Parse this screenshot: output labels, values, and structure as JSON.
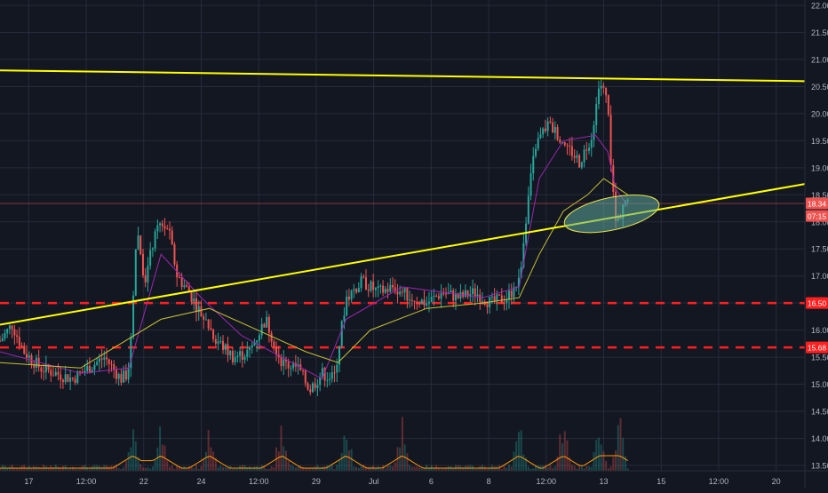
{
  "chart_data": {
    "type": "candlestick",
    "title": "",
    "theme": {
      "background": "#131722",
      "grid": "#262b3b",
      "axis_text": "#b2b5be",
      "up": "#26a69a",
      "down": "#ef5350",
      "trendline": "#ffff00",
      "support": "#ff1f1f",
      "ellipse_fill": "#5fa89a",
      "ellipse_stroke": "#e8e44a",
      "ma_fast": "#9c27b0",
      "ma_slow": "#c9c132",
      "volume_avg": "#ff9800"
    },
    "y_axis": {
      "min": 13.4,
      "max": 22.1,
      "ticks": [
        "13.50",
        "14.00",
        "14.50",
        "15.00",
        "15.50",
        "16.00",
        "16.50",
        "17.00",
        "17.50",
        "18.00",
        "18.50",
        "19.00",
        "19.50",
        "20.00",
        "20.50",
        "21.00",
        "21.50",
        "22.00"
      ]
    },
    "x_axis": {
      "ticks": [
        "17",
        "12:00",
        "22",
        "24",
        "12:00",
        "29",
        "Jul",
        "6",
        "8",
        "12:00",
        "13",
        "15",
        "12:00",
        "20"
      ]
    },
    "price_labels": [
      {
        "id": "last",
        "text": "18.34",
        "value": 18.34,
        "color": "#ef5350"
      },
      {
        "id": "countdown",
        "text": "07:15",
        "value": 18.11,
        "color": "#ef5350"
      },
      {
        "id": "support_upper",
        "text": "16.50",
        "value": 16.5,
        "color": "#ff1f1f"
      },
      {
        "id": "support_lower",
        "text": "15.68",
        "value": 15.68,
        "color": "#ff1f1f"
      }
    ],
    "horizontal_lines": [
      {
        "name": "support-16.50",
        "value": 16.5,
        "style": "dashed"
      },
      {
        "name": "support-15.68",
        "value": 15.68,
        "style": "dashed"
      },
      {
        "name": "last-price-18.34",
        "value": 18.34,
        "style": "solid-thin"
      }
    ],
    "trendlines": [
      {
        "name": "upper-resistance",
        "from": [
          0,
          20.8
        ],
        "to": [
          1,
          20.6
        ]
      },
      {
        "name": "rising-support",
        "from": [
          0,
          16.1
        ],
        "to": [
          1,
          18.7
        ]
      }
    ],
    "price_path": [
      [
        0.0,
        15.8
      ],
      [
        0.015,
        16.1
      ],
      [
        0.03,
        15.6
      ],
      [
        0.05,
        15.3
      ],
      [
        0.07,
        15.2
      ],
      [
        0.09,
        15.1
      ],
      [
        0.11,
        15.3
      ],
      [
        0.13,
        15.5
      ],
      [
        0.15,
        15.1
      ],
      [
        0.16,
        15.2
      ],
      [
        0.17,
        17.9
      ],
      [
        0.18,
        16.9
      ],
      [
        0.19,
        17.6
      ],
      [
        0.2,
        18.0
      ],
      [
        0.21,
        17.8
      ],
      [
        0.22,
        17.0
      ],
      [
        0.235,
        16.7
      ],
      [
        0.25,
        16.3
      ],
      [
        0.27,
        15.8
      ],
      [
        0.29,
        15.5
      ],
      [
        0.31,
        15.6
      ],
      [
        0.33,
        16.2
      ],
      [
        0.35,
        15.4
      ],
      [
        0.37,
        15.3
      ],
      [
        0.385,
        14.9
      ],
      [
        0.4,
        15.2
      ],
      [
        0.415,
        15.1
      ],
      [
        0.43,
        16.6
      ],
      [
        0.45,
        16.9
      ],
      [
        0.47,
        16.7
      ],
      [
        0.49,
        16.8
      ],
      [
        0.51,
        16.6
      ],
      [
        0.53,
        16.5
      ],
      [
        0.55,
        16.7
      ],
      [
        0.57,
        16.6
      ],
      [
        0.59,
        16.7
      ],
      [
        0.61,
        16.5
      ],
      [
        0.63,
        16.6
      ],
      [
        0.645,
        16.9
      ],
      [
        0.655,
        18.3
      ],
      [
        0.665,
        19.4
      ],
      [
        0.68,
        19.8
      ],
      [
        0.695,
        19.6
      ],
      [
        0.71,
        19.3
      ],
      [
        0.72,
        19.1
      ],
      [
        0.735,
        19.6
      ],
      [
        0.745,
        20.6
      ],
      [
        0.755,
        20.2
      ],
      [
        0.76,
        18.8
      ],
      [
        0.765,
        18.0
      ],
      [
        0.77,
        18.1
      ],
      [
        0.775,
        18.4
      ],
      [
        0.78,
        18.3
      ]
    ],
    "ma_fast_path": [
      [
        0.0,
        15.6
      ],
      [
        0.1,
        15.2
      ],
      [
        0.16,
        15.3
      ],
      [
        0.2,
        17.4
      ],
      [
        0.25,
        16.6
      ],
      [
        0.3,
        15.9
      ],
      [
        0.35,
        15.5
      ],
      [
        0.4,
        15.1
      ],
      [
        0.43,
        16.2
      ],
      [
        0.5,
        16.8
      ],
      [
        0.6,
        16.6
      ],
      [
        0.645,
        16.8
      ],
      [
        0.67,
        18.8
      ],
      [
        0.7,
        19.5
      ],
      [
        0.74,
        19.6
      ],
      [
        0.755,
        19.3
      ],
      [
        0.765,
        18.6
      ],
      [
        0.78,
        18.3
      ]
    ],
    "ma_slow_path": [
      [
        0.0,
        15.4
      ],
      [
        0.1,
        15.3
      ],
      [
        0.2,
        16.2
      ],
      [
        0.26,
        16.4
      ],
      [
        0.32,
        16.0
      ],
      [
        0.38,
        15.6
      ],
      [
        0.42,
        15.4
      ],
      [
        0.46,
        16.0
      ],
      [
        0.53,
        16.4
      ],
      [
        0.6,
        16.5
      ],
      [
        0.645,
        16.6
      ],
      [
        0.67,
        17.4
      ],
      [
        0.7,
        18.2
      ],
      [
        0.73,
        18.5
      ],
      [
        0.75,
        18.8
      ],
      [
        0.76,
        18.7
      ],
      [
        0.78,
        18.5
      ]
    ],
    "volume_bursts": [
      0.165,
      0.2,
      0.26,
      0.35,
      0.43,
      0.5,
      0.645,
      0.7,
      0.745,
      0.77
    ],
    "ellipse": {
      "center": [
        0.76,
        18.15
      ],
      "rx_fraction": 0.06,
      "ry_value": 0.3,
      "rotation_deg": -12
    },
    "last_value": 18.34,
    "grid": true
  }
}
